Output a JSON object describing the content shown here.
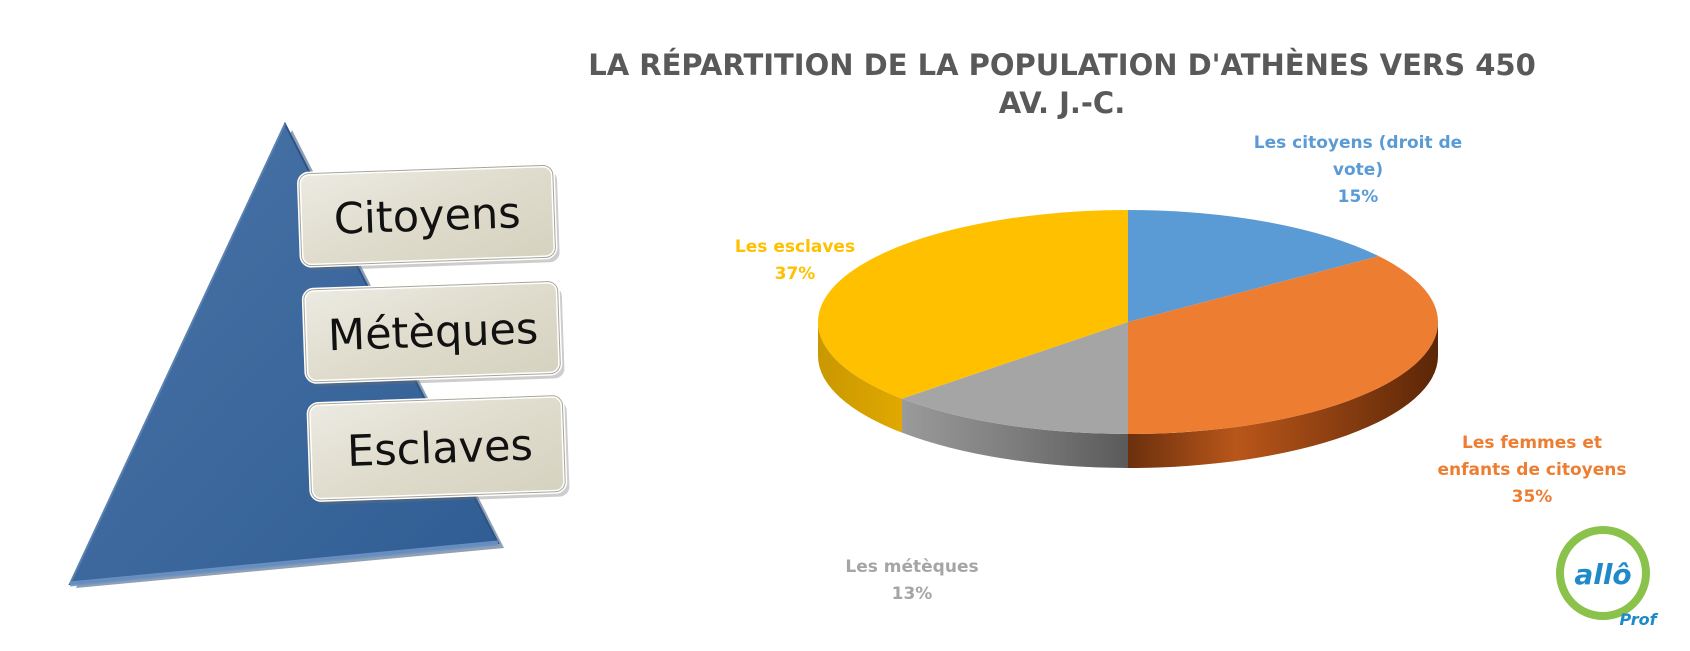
{
  "pyramid": {
    "levels": [
      {
        "label": "Citoyens"
      },
      {
        "label": "Métèques"
      },
      {
        "label": "Esclaves"
      }
    ]
  },
  "chart_data": {
    "type": "pie",
    "style": "3d-exploded-perspective",
    "title_lines": [
      "LA RÉPARTITION DE LA POPULATION D'ATHÈNES VERS 450",
      "AV. J.-C."
    ],
    "slices": [
      {
        "name": "Les citoyens (droit de vote)",
        "value": 15,
        "percent_label": "15%",
        "color": "#5B9BD5",
        "label_lines": [
          "Les citoyens (droit de",
          "vote)"
        ]
      },
      {
        "name": "Les femmes et enfants de citoyens",
        "value": 35,
        "percent_label": "35%",
        "color": "#ED7D31",
        "label_lines": [
          "Les femmes et",
          "enfants de citoyens"
        ]
      },
      {
        "name": "Les métèques",
        "value": 13,
        "percent_label": "13%",
        "color": "#A5A5A5",
        "label_lines": [
          "Les métèques"
        ]
      },
      {
        "name": "Les esclaves",
        "value": 37,
        "percent_label": "37%",
        "color": "#FFC000",
        "label_lines": [
          "Les esclaves"
        ]
      }
    ],
    "legend": "none"
  },
  "logo": {
    "text": "allô",
    "subtext": "Prof"
  }
}
